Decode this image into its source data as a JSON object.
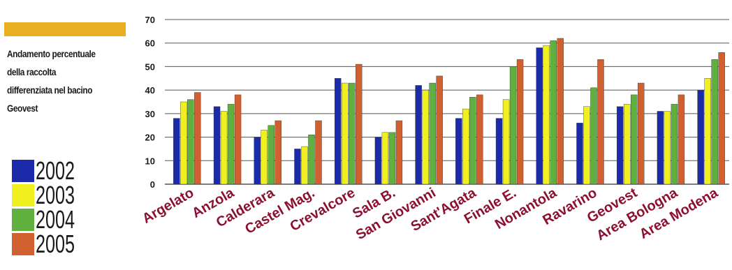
{
  "caption": {
    "line1": "Andamento percentuale",
    "line2": "della raccolta",
    "line3": "differenziata nel bacino",
    "line4": "Geovest"
  },
  "colors": {
    "accent": "#e8b020",
    "text": "#1a1a1a",
    "category_label": "#8c1030",
    "grid": "#555555"
  },
  "chart_data": {
    "type": "bar",
    "categories": [
      "Argelato",
      "Anzola",
      "Calderara",
      "Castel Mag.",
      "Crevalcore",
      "Sala B.",
      "San Giovanni",
      "Sant'Agata",
      "Finale E.",
      "Nonantola",
      "Ravarino",
      "Geovest",
      "Area Bologna",
      "Area Modena"
    ],
    "series": [
      {
        "name": "2002",
        "color": "#1a2aa8",
        "values": [
          28,
          33,
          20,
          15,
          45,
          20,
          42,
          28,
          28,
          58,
          26,
          33,
          31,
          40
        ]
      },
      {
        "name": "2003",
        "color": "#f0f020",
        "values": [
          35,
          31,
          23,
          16,
          43,
          22,
          40,
          32,
          36,
          59,
          33,
          34,
          31,
          45
        ]
      },
      {
        "name": "2004",
        "color": "#60b040",
        "values": [
          36,
          34,
          25,
          21,
          43,
          22,
          43,
          37,
          50,
          61,
          41,
          38,
          34,
          53
        ]
      },
      {
        "name": "2005",
        "color": "#d06030",
        "values": [
          39,
          38,
          27,
          27,
          51,
          27,
          46,
          38,
          53,
          62,
          53,
          43,
          38,
          56
        ]
      }
    ],
    "yticks": [
      0,
      10,
      20,
      30,
      40,
      50,
      60,
      70
    ],
    "ylim": [
      0,
      70
    ],
    "grid": true,
    "legend_position": "left"
  }
}
